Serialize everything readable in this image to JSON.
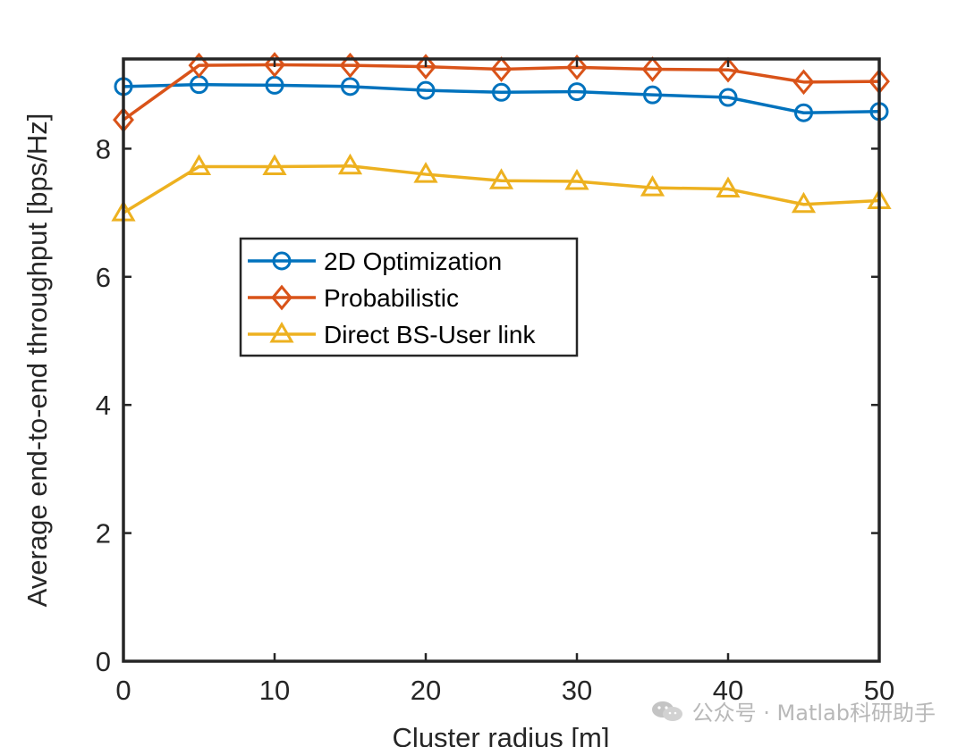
{
  "chart_data": {
    "type": "line",
    "x": [
      0,
      5,
      10,
      15,
      20,
      25,
      30,
      35,
      40,
      45,
      50
    ],
    "xlabel": "Cluster radius [m]",
    "ylabel": "Average end-to-end throughput [bps/Hz]",
    "xlim": [
      0,
      50
    ],
    "ylim": [
      0,
      9.4
    ],
    "xticks": [
      0,
      10,
      20,
      30,
      40,
      50
    ],
    "yticks": [
      0,
      2,
      4,
      6,
      8
    ],
    "grid": false,
    "legend_position": "center-left",
    "series": [
      {
        "name": "2D Optimization",
        "color": "#0072BD",
        "marker": "circle",
        "values": [
          8.97,
          9.0,
          8.99,
          8.97,
          8.91,
          8.88,
          8.89,
          8.84,
          8.8,
          8.56,
          8.58
        ]
      },
      {
        "name": "Probabilistic",
        "color": "#D95319",
        "marker": "diamond",
        "values": [
          8.45,
          9.3,
          9.31,
          9.3,
          9.28,
          9.24,
          9.27,
          9.24,
          9.23,
          9.04,
          9.05
        ]
      },
      {
        "name": "Direct BS-User link",
        "color": "#EDB120",
        "marker": "triangle",
        "values": [
          7.0,
          7.72,
          7.72,
          7.73,
          7.6,
          7.5,
          7.49,
          7.39,
          7.37,
          7.13,
          7.19
        ]
      }
    ]
  },
  "watermark": {
    "icon": "wechat-icon",
    "text": "公众号 · Matlab科研助手"
  }
}
